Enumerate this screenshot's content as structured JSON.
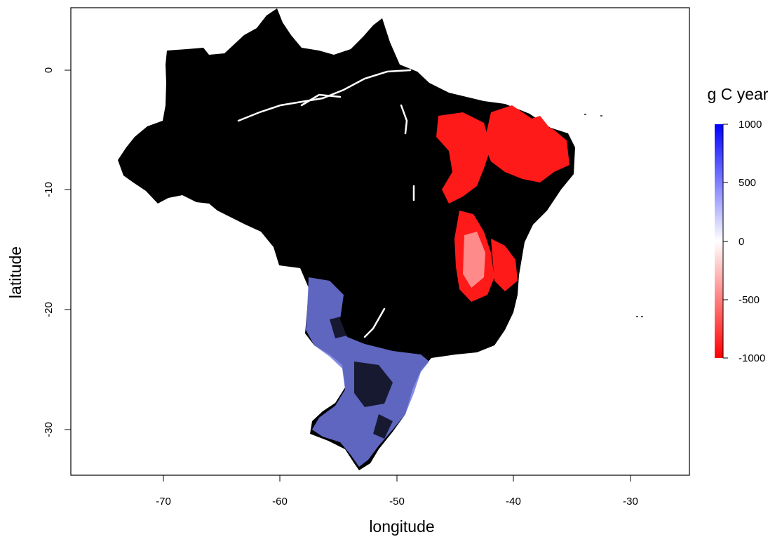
{
  "plot": {
    "xlabel": "longitude",
    "ylabel": "latitude",
    "x_ticks": [
      "-70",
      "-60",
      "-50",
      "-40",
      "-30"
    ],
    "y_ticks": [
      "0",
      "-10",
      "-20",
      "-30"
    ],
    "xlim": [
      -78,
      -25
    ],
    "ylim": [
      -34,
      5
    ],
    "map_fill": "#000000"
  },
  "legend": {
    "title": "g C year",
    "ticks": [
      "1000",
      "500",
      "0",
      "-500",
      "-1000"
    ],
    "range": [
      -1000,
      1000
    ],
    "colors": {
      "max": "#0000ff",
      "mid": "#ffffff",
      "min": "#ff0000"
    }
  }
}
